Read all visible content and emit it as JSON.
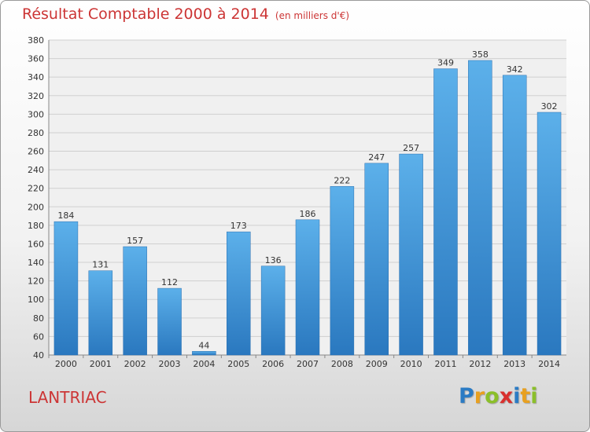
{
  "chart_data": {
    "type": "bar",
    "title": "Résultat Comptable 2000 à 2014",
    "subtitle": "(en milliers d'€)",
    "xlabel": "",
    "ylabel": "",
    "categories": [
      "2000",
      "2001",
      "2002",
      "2003",
      "2004",
      "2005",
      "2006",
      "2007",
      "2008",
      "2009",
      "2010",
      "2011",
      "2012",
      "2013",
      "2014"
    ],
    "values": [
      184,
      131,
      157,
      112,
      44,
      173,
      136,
      186,
      222,
      247,
      257,
      349,
      358,
      342,
      302
    ],
    "ylim": [
      40,
      380
    ],
    "yticks": [
      40,
      60,
      80,
      100,
      120,
      140,
      160,
      180,
      200,
      220,
      240,
      260,
      280,
      300,
      320,
      340,
      360,
      380
    ],
    "grid": true,
    "bar_color": "#3d8fd6"
  },
  "footer": {
    "commune": "LANTRIAC",
    "logo": [
      "P",
      "r",
      "o",
      "x",
      "i",
      "t",
      "i"
    ],
    "logo_colors": [
      "#2b7bc4",
      "#e8a020",
      "#8bbf2a",
      "#d9302e",
      "#2b7bc4",
      "#e8a020",
      "#8bbf2a"
    ]
  }
}
